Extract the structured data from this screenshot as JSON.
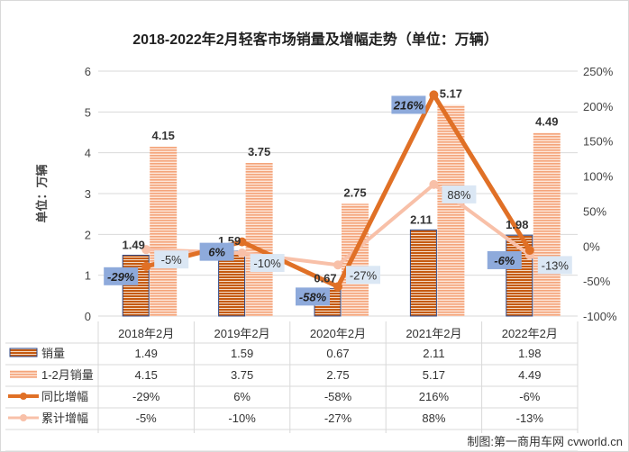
{
  "chart_data": {
    "type": "bar+line",
    "title": "2018-2022年2月轻客市场销量及增幅走势（单位：万辆）",
    "ylabel": "单位：万辆",
    "ylim": [
      0,
      6
    ],
    "y_ticks": [
      "0",
      "1",
      "2",
      "3",
      "4",
      "5",
      "6"
    ],
    "y2lim": [
      -100,
      250
    ],
    "y2_ticks": [
      "-100%",
      "-50%",
      "0%",
      "50%",
      "100%",
      "150%",
      "200%",
      "250%"
    ],
    "grid": true,
    "categories": [
      "2018年2月",
      "2019年2月",
      "2020年2月",
      "2021年2月",
      "2022年2月"
    ],
    "series": [
      {
        "name": "销量",
        "type": "bar",
        "axis": "left",
        "values": [
          1.49,
          1.59,
          0.67,
          2.11,
          1.98
        ],
        "labels": [
          "1.49",
          "1.59",
          "0.67",
          "2.11",
          "1.98"
        ],
        "color": "#c55a11"
      },
      {
        "name": "1-2月销量",
        "type": "bar",
        "axis": "left",
        "values": [
          4.15,
          3.75,
          2.75,
          5.17,
          4.49
        ],
        "labels": [
          "4.15",
          "3.75",
          "2.75",
          "5.17",
          "4.49"
        ],
        "color": "#f4b183"
      },
      {
        "name": "同比增幅",
        "type": "line",
        "axis": "right",
        "values": [
          -29,
          6,
          -58,
          216,
          -6
        ],
        "labels": [
          "-29%",
          "6%",
          "-58%",
          "216%",
          "-6%"
        ],
        "color": "#e07026"
      },
      {
        "name": "累计增幅",
        "type": "line",
        "axis": "right",
        "values": [
          -5,
          -10,
          -27,
          88,
          -13
        ],
        "labels": [
          "-5%",
          "-10%",
          "-27%",
          "88%",
          "-13%"
        ],
        "color": "#f8c0a8"
      }
    ],
    "data_table": true,
    "source": "制图:第一商用车网 cvworld.cn"
  }
}
